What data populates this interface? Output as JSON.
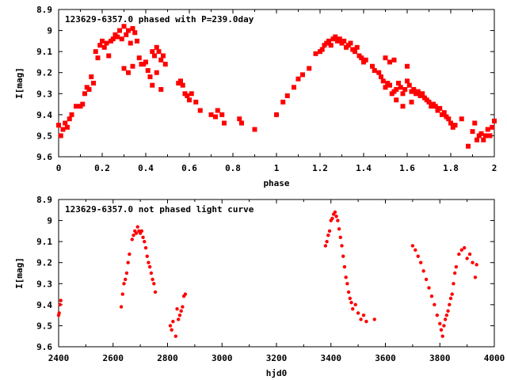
{
  "chart_data": [
    {
      "type": "scatter",
      "title": "123629-6357.0 phased with P=239.0day",
      "xlabel": "phase",
      "ylabel": "I[mag]",
      "xlim": [
        0,
        2
      ],
      "ylim": [
        8.9,
        9.6
      ],
      "y_reversed": true,
      "grid": false,
      "x_ticks": [
        "0",
        "0.2",
        "0.4",
        "0.6",
        "0.8",
        "1",
        "1.2",
        "1.4",
        "1.6",
        "1.8",
        "2"
      ],
      "y_ticks": [
        "8.9",
        "9",
        "9.1",
        "9.2",
        "9.3",
        "9.4",
        "9.5",
        "9.6"
      ],
      "series": [
        {
          "color": "#ff0000",
          "points": [
            [
              0.0,
              9.45
            ],
            [
              0.01,
              9.5
            ],
            [
              0.02,
              9.47
            ],
            [
              0.03,
              9.44
            ],
            [
              0.04,
              9.46
            ],
            [
              0.05,
              9.42
            ],
            [
              0.06,
              9.4
            ],
            [
              0.08,
              9.36
            ],
            [
              0.1,
              9.36
            ],
            [
              0.11,
              9.35
            ],
            [
              0.12,
              9.3
            ],
            [
              0.13,
              9.27
            ],
            [
              0.14,
              9.28
            ],
            [
              0.15,
              9.22
            ],
            [
              0.16,
              9.25
            ],
            [
              0.17,
              9.1
            ],
            [
              0.18,
              9.13
            ],
            [
              0.19,
              9.07
            ],
            [
              0.2,
              9.05
            ],
            [
              0.21,
              9.08
            ],
            [
              0.22,
              9.06
            ],
            [
              0.23,
              9.12
            ],
            [
              0.24,
              9.05
            ],
            [
              0.25,
              9.04
            ],
            [
              0.26,
              9.02
            ],
            [
              0.27,
              9.03
            ],
            [
              0.28,
              9.0
            ],
            [
              0.29,
              9.04
            ],
            [
              0.3,
              8.98
            ],
            [
              0.31,
              9.02
            ],
            [
              0.32,
              9.0
            ],
            [
              0.33,
              9.06
            ],
            [
              0.34,
              8.99
            ],
            [
              0.35,
              9.01
            ],
            [
              0.36,
              9.05
            ],
            [
              0.37,
              9.13
            ],
            [
              0.38,
              9.16
            ],
            [
              0.3,
              9.18
            ],
            [
              0.32,
              9.2
            ],
            [
              0.34,
              9.17
            ],
            [
              0.39,
              9.16
            ],
            [
              0.4,
              9.15
            ],
            [
              0.41,
              9.19
            ],
            [
              0.42,
              9.22
            ],
            [
              0.43,
              9.1
            ],
            [
              0.44,
              9.12
            ],
            [
              0.45,
              9.08
            ],
            [
              0.46,
              9.1
            ],
            [
              0.47,
              9.14
            ],
            [
              0.48,
              9.12
            ],
            [
              0.49,
              9.16
            ],
            [
              0.45,
              9.2
            ],
            [
              0.47,
              9.28
            ],
            [
              0.43,
              9.26
            ],
            [
              0.55,
              9.25
            ],
            [
              0.56,
              9.24
            ],
            [
              0.57,
              9.26
            ],
            [
              0.58,
              9.3
            ],
            [
              0.59,
              9.31
            ],
            [
              0.6,
              9.33
            ],
            [
              0.61,
              9.3
            ],
            [
              0.63,
              9.34
            ],
            [
              0.65,
              9.38
            ],
            [
              0.7,
              9.4
            ],
            [
              0.72,
              9.41
            ],
            [
              0.73,
              9.38
            ],
            [
              0.75,
              9.4
            ],
            [
              0.76,
              9.44
            ],
            [
              0.83,
              9.42
            ],
            [
              0.84,
              9.44
            ],
            [
              0.9,
              9.47
            ],
            [
              1.0,
              9.4
            ],
            [
              1.03,
              9.34
            ],
            [
              1.05,
              9.31
            ],
            [
              1.08,
              9.27
            ],
            [
              1.1,
              9.23
            ],
            [
              1.12,
              9.21
            ],
            [
              1.15,
              9.18
            ],
            [
              1.18,
              9.11
            ],
            [
              1.2,
              9.1
            ],
            [
              1.21,
              9.09
            ],
            [
              1.22,
              9.07
            ],
            [
              1.23,
              9.06
            ],
            [
              1.24,
              9.05
            ],
            [
              1.25,
              9.07
            ],
            [
              1.26,
              9.04
            ],
            [
              1.27,
              9.03
            ],
            [
              1.28,
              9.05
            ],
            [
              1.29,
              9.04
            ],
            [
              1.3,
              9.06
            ],
            [
              1.31,
              9.05
            ],
            [
              1.32,
              9.08
            ],
            [
              1.33,
              9.07
            ],
            [
              1.34,
              9.06
            ],
            [
              1.35,
              9.09
            ],
            [
              1.36,
              9.1
            ],
            [
              1.37,
              9.08
            ],
            [
              1.38,
              9.12
            ],
            [
              1.39,
              9.13
            ],
            [
              1.4,
              9.15
            ],
            [
              1.41,
              9.14
            ],
            [
              1.44,
              9.17
            ],
            [
              1.45,
              9.19
            ],
            [
              1.47,
              9.2
            ],
            [
              1.48,
              9.22
            ],
            [
              1.49,
              9.24
            ],
            [
              1.5,
              9.27
            ],
            [
              1.51,
              9.25
            ],
            [
              1.52,
              9.26
            ],
            [
              1.53,
              9.3
            ],
            [
              1.54,
              9.29
            ],
            [
              1.55,
              9.28
            ],
            [
              1.56,
              9.25
            ],
            [
              1.57,
              9.27
            ],
            [
              1.58,
              9.3
            ],
            [
              1.59,
              9.28
            ],
            [
              1.6,
              9.24
            ],
            [
              1.61,
              9.26
            ],
            [
              1.62,
              9.29
            ],
            [
              1.63,
              9.28
            ],
            [
              1.64,
              9.3
            ],
            [
              1.65,
              9.29
            ],
            [
              1.66,
              9.31
            ],
            [
              1.67,
              9.3
            ],
            [
              1.68,
              9.32
            ],
            [
              1.69,
              9.33
            ],
            [
              1.7,
              9.34
            ],
            [
              1.71,
              9.36
            ],
            [
              1.72,
              9.35
            ],
            [
              1.73,
              9.36
            ],
            [
              1.74,
              9.38
            ],
            [
              1.75,
              9.37
            ],
            [
              1.76,
              9.4
            ],
            [
              1.77,
              9.39
            ],
            [
              1.78,
              9.41
            ],
            [
              1.79,
              9.42
            ],
            [
              1.8,
              9.44
            ],
            [
              1.81,
              9.46
            ],
            [
              1.82,
              9.45
            ],
            [
              1.5,
              9.13
            ],
            [
              1.52,
              9.15
            ],
            [
              1.54,
              9.14
            ],
            [
              1.6,
              9.17
            ],
            [
              1.55,
              9.33
            ],
            [
              1.58,
              9.36
            ],
            [
              1.62,
              9.34
            ],
            [
              1.85,
              9.42
            ],
            [
              1.9,
              9.48
            ],
            [
              1.92,
              9.52
            ],
            [
              1.93,
              9.5
            ],
            [
              1.94,
              9.49
            ],
            [
              1.95,
              9.52
            ],
            [
              1.96,
              9.5
            ],
            [
              1.97,
              9.47
            ],
            [
              1.98,
              9.5
            ],
            [
              1.99,
              9.46
            ],
            [
              2.0,
              9.43
            ],
            [
              1.88,
              9.55
            ],
            [
              1.91,
              9.44
            ]
          ]
        }
      ]
    },
    {
      "type": "scatter",
      "title": "123629-6357.0 not phased light curve",
      "xlabel": "hjd0",
      "ylabel": "I[mag]",
      "xlim": [
        2400,
        4000
      ],
      "ylim": [
        8.9,
        9.6
      ],
      "y_reversed": true,
      "grid": false,
      "x_ticks": [
        "2400",
        "2600",
        "2800",
        "3000",
        "3200",
        "3400",
        "3600",
        "3800",
        "4000"
      ],
      "y_ticks": [
        "8.9",
        "9",
        "9.1",
        "9.2",
        "9.3",
        "9.4",
        "9.5",
        "9.6"
      ],
      "series": [
        {
          "color": "#ff0000",
          "points": [
            [
              2400,
              9.45
            ],
            [
              2402,
              9.44
            ],
            [
              2405,
              9.4
            ],
            [
              2408,
              9.38
            ],
            [
              2630,
              9.41
            ],
            [
              2635,
              9.35
            ],
            [
              2640,
              9.3
            ],
            [
              2645,
              9.28
            ],
            [
              2650,
              9.25
            ],
            [
              2655,
              9.2
            ],
            [
              2660,
              9.16
            ],
            [
              2670,
              9.09
            ],
            [
              2675,
              9.07
            ],
            [
              2680,
              9.05
            ],
            [
              2685,
              9.06
            ],
            [
              2690,
              9.03
            ],
            [
              2695,
              9.05
            ],
            [
              2700,
              9.06
            ],
            [
              2705,
              9.05
            ],
            [
              2710,
              9.08
            ],
            [
              2715,
              9.1
            ],
            [
              2720,
              9.13
            ],
            [
              2725,
              9.17
            ],
            [
              2730,
              9.2
            ],
            [
              2735,
              9.22
            ],
            [
              2740,
              9.25
            ],
            [
              2745,
              9.28
            ],
            [
              2750,
              9.3
            ],
            [
              2755,
              9.34
            ],
            [
              2810,
              9.5
            ],
            [
              2815,
              9.52
            ],
            [
              2820,
              9.48
            ],
            [
              2830,
              9.55
            ],
            [
              2835,
              9.42
            ],
            [
              2840,
              9.47
            ],
            [
              2845,
              9.45
            ],
            [
              2850,
              9.43
            ],
            [
              2855,
              9.41
            ],
            [
              2860,
              9.36
            ],
            [
              2865,
              9.35
            ],
            [
              3380,
              9.12
            ],
            [
              3385,
              9.1
            ],
            [
              3390,
              9.07
            ],
            [
              3395,
              9.05
            ],
            [
              3400,
              9.0
            ],
            [
              3405,
              8.99
            ],
            [
              3410,
              8.97
            ],
            [
              3415,
              8.96
            ],
            [
              3420,
              8.98
            ],
            [
              3425,
              9.0
            ],
            [
              3430,
              9.04
            ],
            [
              3435,
              9.08
            ],
            [
              3440,
              9.12
            ],
            [
              3445,
              9.17
            ],
            [
              3450,
              9.22
            ],
            [
              3455,
              9.27
            ],
            [
              3460,
              9.3
            ],
            [
              3465,
              9.34
            ],
            [
              3470,
              9.37
            ],
            [
              3475,
              9.39
            ],
            [
              3480,
              9.42
            ],
            [
              3490,
              9.4
            ],
            [
              3500,
              9.44
            ],
            [
              3510,
              9.47
            ],
            [
              3520,
              9.45
            ],
            [
              3530,
              9.48
            ],
            [
              3560,
              9.47
            ],
            [
              3700,
              9.12
            ],
            [
              3710,
              9.14
            ],
            [
              3720,
              9.17
            ],
            [
              3730,
              9.2
            ],
            [
              3740,
              9.24
            ],
            [
              3750,
              9.28
            ],
            [
              3760,
              9.32
            ],
            [
              3770,
              9.36
            ],
            [
              3780,
              9.4
            ],
            [
              3790,
              9.45
            ],
            [
              3800,
              9.49
            ],
            [
              3805,
              9.52
            ],
            [
              3810,
              9.55
            ],
            [
              3815,
              9.5
            ],
            [
              3820,
              9.47
            ],
            [
              3825,
              9.45
            ],
            [
              3830,
              9.43
            ],
            [
              3835,
              9.4
            ],
            [
              3840,
              9.37
            ],
            [
              3845,
              9.35
            ],
            [
              3850,
              9.3
            ],
            [
              3855,
              9.25
            ],
            [
              3860,
              9.22
            ],
            [
              3870,
              9.16
            ],
            [
              3880,
              9.14
            ],
            [
              3890,
              9.13
            ],
            [
              3900,
              9.18
            ],
            [
              3910,
              9.16
            ],
            [
              3920,
              9.2
            ],
            [
              3930,
              9.27
            ],
            [
              3935,
              9.21
            ]
          ]
        }
      ]
    }
  ]
}
